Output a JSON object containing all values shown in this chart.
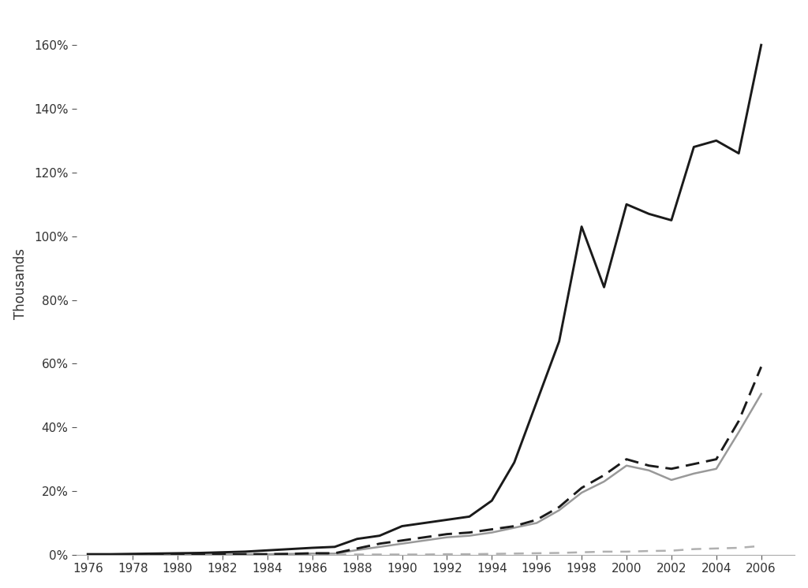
{
  "years": [
    1976,
    1977,
    1978,
    1979,
    1980,
    1981,
    1982,
    1983,
    1984,
    1985,
    1986,
    1987,
    1988,
    1989,
    1990,
    1991,
    1992,
    1993,
    1994,
    1995,
    1996,
    1997,
    1998,
    1999,
    2000,
    2001,
    2002,
    2003,
    2004,
    2005,
    2006
  ],
  "solid_black": [
    0.002,
    0.002,
    0.003,
    0.004,
    0.005,
    0.006,
    0.008,
    0.01,
    0.014,
    0.018,
    0.022,
    0.025,
    0.05,
    0.06,
    0.09,
    0.1,
    0.11,
    0.12,
    0.17,
    0.29,
    0.48,
    0.67,
    1.03,
    0.84,
    1.1,
    1.07,
    1.05,
    1.28,
    1.3,
    1.26,
    1.6
  ],
  "dashed_black": [
    0.0,
    0.0,
    0.0,
    0.001,
    0.001,
    0.001,
    0.001,
    0.002,
    0.002,
    0.003,
    0.005,
    0.005,
    0.02,
    0.035,
    0.045,
    0.055,
    0.065,
    0.07,
    0.08,
    0.09,
    0.11,
    0.15,
    0.21,
    0.25,
    0.3,
    0.28,
    0.27,
    0.285,
    0.3,
    0.42,
    0.59
  ],
  "solid_gray": [
    0.0,
    0.0,
    0.0,
    0.001,
    0.001,
    0.001,
    0.001,
    0.002,
    0.002,
    0.003,
    0.004,
    0.004,
    0.015,
    0.025,
    0.035,
    0.045,
    0.055,
    0.06,
    0.07,
    0.085,
    0.1,
    0.14,
    0.195,
    0.23,
    0.28,
    0.265,
    0.235,
    0.255,
    0.27,
    0.385,
    0.505
  ],
  "dashed_gray": [
    0.0,
    0.0,
    0.0,
    0.0,
    0.0,
    0.0,
    0.0,
    0.0,
    0.0,
    0.001,
    0.001,
    0.001,
    0.001,
    0.001,
    0.001,
    0.001,
    0.002,
    0.002,
    0.003,
    0.004,
    0.005,
    0.006,
    0.008,
    0.01,
    0.01,
    0.012,
    0.013,
    0.018,
    0.02,
    0.022,
    0.028
  ],
  "ylabel": "Thousands",
  "xlim": [
    1975.5,
    2007.5
  ],
  "ylim": [
    0.0,
    1.7
  ],
  "yticks": [
    0.0,
    0.2,
    0.4,
    0.6,
    0.8,
    1.0,
    1.2,
    1.4,
    1.6
  ],
  "xticks": [
    1976,
    1978,
    1980,
    1982,
    1984,
    1986,
    1988,
    1990,
    1992,
    1994,
    1996,
    1998,
    2000,
    2002,
    2004,
    2006
  ],
  "background_color": "#ffffff",
  "solid_black_color": "#1a1a1a",
  "dashed_black_color": "#1a1a1a",
  "solid_gray_color": "#999999",
  "dashed_gray_color": "#b0b0b0",
  "line_width": 1.8,
  "tick_label_fontsize": 11,
  "ylabel_fontsize": 12,
  "spine_color": "#aaaaaa",
  "tick_color": "#555555"
}
